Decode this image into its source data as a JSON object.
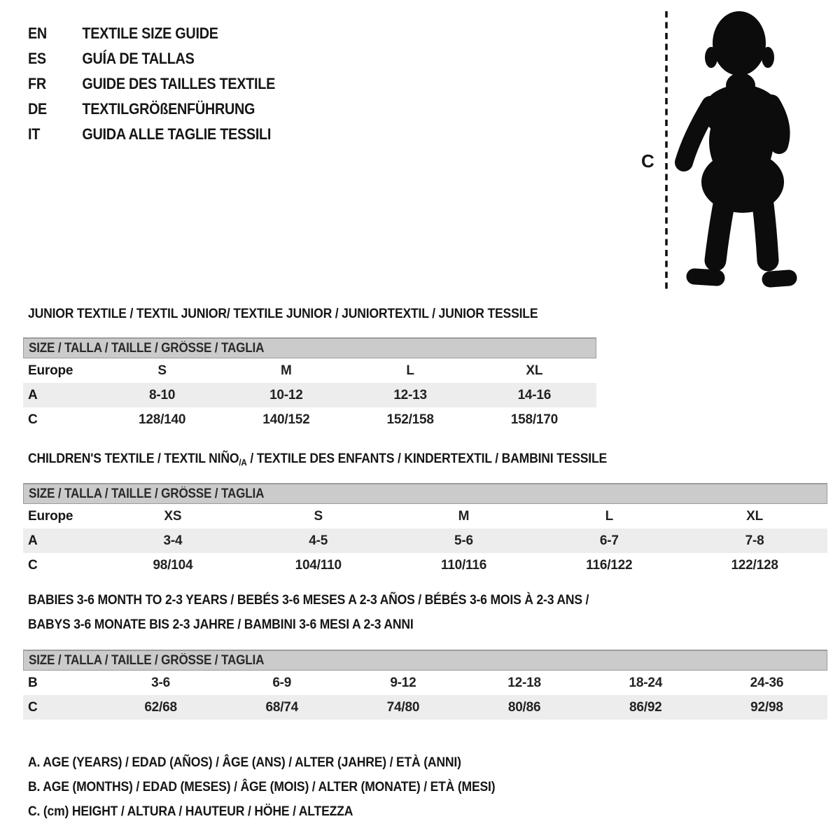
{
  "languages": [
    {
      "code": "EN",
      "title": "TEXTILE SIZE GUIDE"
    },
    {
      "code": "ES",
      "title": "GUÍA DE TALLAS"
    },
    {
      "code": "FR",
      "title": "GUIDE DES TAILLES TEXTILE"
    },
    {
      "code": "DE",
      "title": "TEXTILGRÖßENFÜHRUNG"
    },
    {
      "code": "IT",
      "title": "GUIDA ALLE TAGLIE TESSILI"
    }
  ],
  "figure": {
    "label": "C",
    "depicts": "toddler-silhouette with height measure dashed line"
  },
  "sections": [
    {
      "title": "JUNIOR TEXTILE / TEXTIL JUNIOR/ TEXTILE JUNIOR / JUNIORTEXTIL / JUNIOR TESSILE",
      "size_header": "SIZE / TALLA / TAILLE / GRÖSSE / TAGLIA",
      "rows": [
        {
          "label": "Europe",
          "shaded": false,
          "cells": [
            "S",
            "M",
            "L",
            "XL"
          ]
        },
        {
          "label": "A",
          "shaded": true,
          "cells": [
            "8-10",
            "10-12",
            "12-13",
            "14-16"
          ]
        },
        {
          "label": "C",
          "shaded": false,
          "cells": [
            "128/140",
            "140/152",
            "152/158",
            "158/170"
          ]
        }
      ]
    },
    {
      "title_pre": "CHILDREN'S TEXTILE / TEXTIL NIÑO",
      "title_sub": "/A",
      "title_post": " / TEXTILE DES ENFANTS / KINDERTEXTIL / BAMBINI TESSILE",
      "size_header": "SIZE / TALLA / TAILLE / GRÖSSE / TAGLIA",
      "rows": [
        {
          "label": "Europe",
          "shaded": false,
          "cells": [
            "XS",
            "S",
            "M",
            "L",
            "XL"
          ]
        },
        {
          "label": "A",
          "shaded": true,
          "cells": [
            "3-4",
            "4-5",
            "5-6",
            "6-7",
            "7-8"
          ]
        },
        {
          "label": "C",
          "shaded": false,
          "cells": [
            "98/104",
            "104/110",
            "110/116",
            "116/122",
            "122/128"
          ]
        }
      ]
    },
    {
      "title_line1": "BABIES 3-6 MONTH TO 2-3 YEARS / BEBÉS 3-6 MESES A 2-3 AÑOS / BÉBÉS 3-6 MOIS À 2-3 ANS /",
      "title_line2": "BABYS 3-6 MONATE BIS 2-3 JAHRE / BAMBINI 3-6 MESI A 2-3 ANNI",
      "size_header": "SIZE / TALLA / TAILLE / GRÖSSE / TAGLIA",
      "rows": [
        {
          "label": "B",
          "shaded": false,
          "cells": [
            "3-6",
            "6-9",
            "9-12",
            "12-18",
            "18-24",
            "24-36"
          ]
        },
        {
          "label": "C",
          "shaded": true,
          "cells": [
            "62/68",
            "68/74",
            "74/80",
            "80/86",
            "86/92",
            "92/98"
          ]
        }
      ]
    }
  ],
  "legend": [
    "A. AGE (YEARS) / EDAD (AÑOS) / ÂGE (ANS) / ALTER (JAHRE) / ETÀ (ANNI)",
    "B. AGE (MONTHS) / EDAD (MESES) / ÂGE (MOIS) / ALTER (MONATE) / ETÀ (MESI)",
    "C. (cm) HEIGHT / ALTURA / HAUTEUR / HÖHE / ALTEZZA"
  ],
  "colors": {
    "text": "#161616",
    "header_bg": "#cbcbcb",
    "header_border": "#9c9c9c",
    "row_alt_bg": "#ededed",
    "silhouette": "#0c0c0c"
  }
}
